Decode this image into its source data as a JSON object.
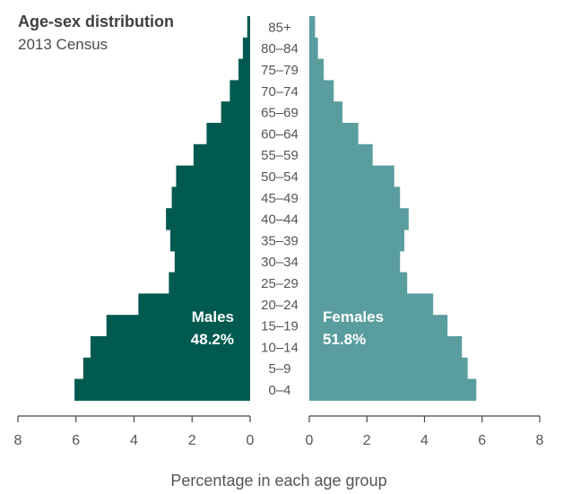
{
  "chart_data": {
    "type": "bar",
    "orientation": "horizontal-pyramid",
    "title": "Age-sex distribution",
    "subtitle": "2013 Census",
    "xlabel": "Percentage in each age group",
    "xlim": [
      0,
      8
    ],
    "xticks": [
      "8",
      "6",
      "4",
      "2",
      "0",
      "0",
      "2",
      "4",
      "6",
      "8"
    ],
    "categories": [
      "85+",
      "80–84",
      "75–79",
      "70–74",
      "65–69",
      "60–64",
      "55–59",
      "50–54",
      "45–49",
      "40–44",
      "35–39",
      "30–34",
      "25–29",
      "20–24",
      "15–19",
      "10–14",
      "5–9",
      "0–4"
    ],
    "series": [
      {
        "name": "Males",
        "total_label": "48.2%",
        "color": "#005a50",
        "label_color": "#ffffff",
        "values": [
          0.1,
          0.25,
          0.4,
          0.7,
          1.0,
          1.5,
          1.95,
          2.55,
          2.7,
          2.9,
          2.75,
          2.6,
          2.8,
          3.85,
          4.95,
          5.5,
          5.75,
          6.05
        ]
      },
      {
        "name": "Females",
        "total_label": "51.8%",
        "color": "#5a9d9e",
        "label_color": "#ffffff",
        "values": [
          0.2,
          0.3,
          0.5,
          0.85,
          1.15,
          1.7,
          2.2,
          2.95,
          3.15,
          3.45,
          3.3,
          3.15,
          3.4,
          4.3,
          4.8,
          5.3,
          5.5,
          5.8
        ]
      }
    ],
    "axis_color": "#444444",
    "text_color": "#555555",
    "grid": false,
    "legend": "inline"
  }
}
